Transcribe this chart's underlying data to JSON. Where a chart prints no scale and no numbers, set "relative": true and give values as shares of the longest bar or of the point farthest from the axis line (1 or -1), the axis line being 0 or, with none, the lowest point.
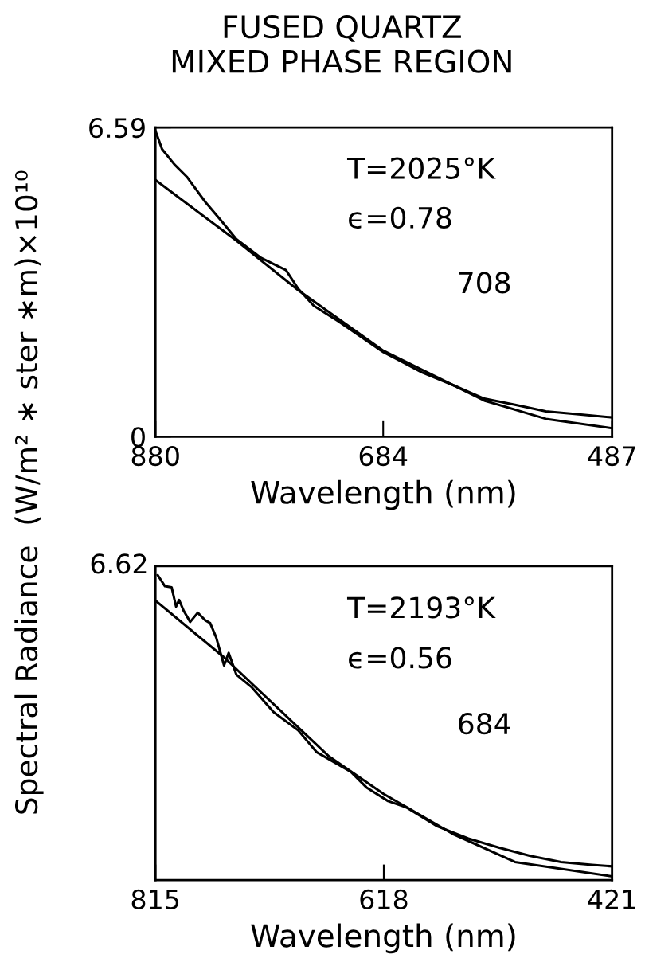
{
  "chart_data": [
    {
      "type": "line",
      "title": "FUSED QUARTZ\nMIXED PHASE REGION",
      "ylabel": "Spectral Radiance  (W/m² ∗ ster ∗m)×10¹⁰",
      "xlabel": "Wavelength (nm)",
      "xlim": [
        880,
        487
      ],
      "xticks": [
        880,
        684,
        487
      ],
      "ylim": [
        0,
        6.59
      ],
      "yticks": [
        0,
        6.59
      ],
      "annotations": [
        "T=2025°K",
        "ϵ=0.78",
        "708"
      ],
      "series": [
        {
          "color": "#000000",
          "x": [
            880,
            874.3,
            863.6,
            853,
            837,
            823.6,
            810.4,
            789,
            767.7,
            757,
            743.7,
            722.5,
            683.8,
            650.6,
            624,
            597,
            570.5,
            544,
            517.4,
            487
          ],
          "values": [
            6.52,
            6.13,
            5.8,
            5.54,
            5.0,
            4.61,
            4.21,
            3.81,
            3.55,
            3.15,
            2.79,
            2.46,
            1.8,
            1.37,
            1.1,
            0.81,
            0.68,
            0.54,
            0.48,
            0.41
          ]
        },
        {
          "color": "#000000",
          "x": [
            880,
            810.4,
            757,
            683.8,
            597,
            544,
            487
          ],
          "values": [
            5.47,
            4.18,
            3.12,
            1.83,
            0.77,
            0.38,
            0.18
          ]
        }
      ]
    },
    {
      "type": "line",
      "xlabel": "Wavelength (nm)",
      "xlim": [
        815,
        421
      ],
      "xticks": [
        815,
        618,
        421
      ],
      "relative": true,
      "annotations": [
        "T=2193°K",
        "ϵ=0.56",
        "684",
        "6.62"
      ],
      "series": [
        {
          "color": "#000000",
          "x": [
            813,
            806.8,
            801,
            797.2,
            794.6,
            790.6,
            785,
            778.5,
            772,
            767.8,
            762.6,
            755.8,
            751.8,
            745.2,
            731.8,
            713,
            691.8,
            675.7,
            646.4,
            633,
            614.3,
            598.3,
            571.7,
            545,
            518.3,
            491.6,
            465,
            438.3,
            421.5
          ],
          "values": [
            1,
            0.964,
            0.96,
            0.897,
            0.919,
            0.883,
            0.847,
            0.877,
            0.852,
            0.843,
            0.796,
            0.704,
            0.745,
            0.674,
            0.632,
            0.551,
            0.491,
            0.419,
            0.355,
            0.304,
            0.259,
            0.238,
            0.176,
            0.136,
            0.106,
            0.079,
            0.059,
            0.05,
            0.045
          ]
        },
        {
          "color": "#000000",
          "x": [
            815,
            756,
            665,
            618.3,
            558.3,
            504.8,
            421
          ],
          "values": [
            0.917,
            0.731,
            0.405,
            0.283,
            0.151,
            0.059,
            0.012
          ]
        }
      ]
    }
  ]
}
